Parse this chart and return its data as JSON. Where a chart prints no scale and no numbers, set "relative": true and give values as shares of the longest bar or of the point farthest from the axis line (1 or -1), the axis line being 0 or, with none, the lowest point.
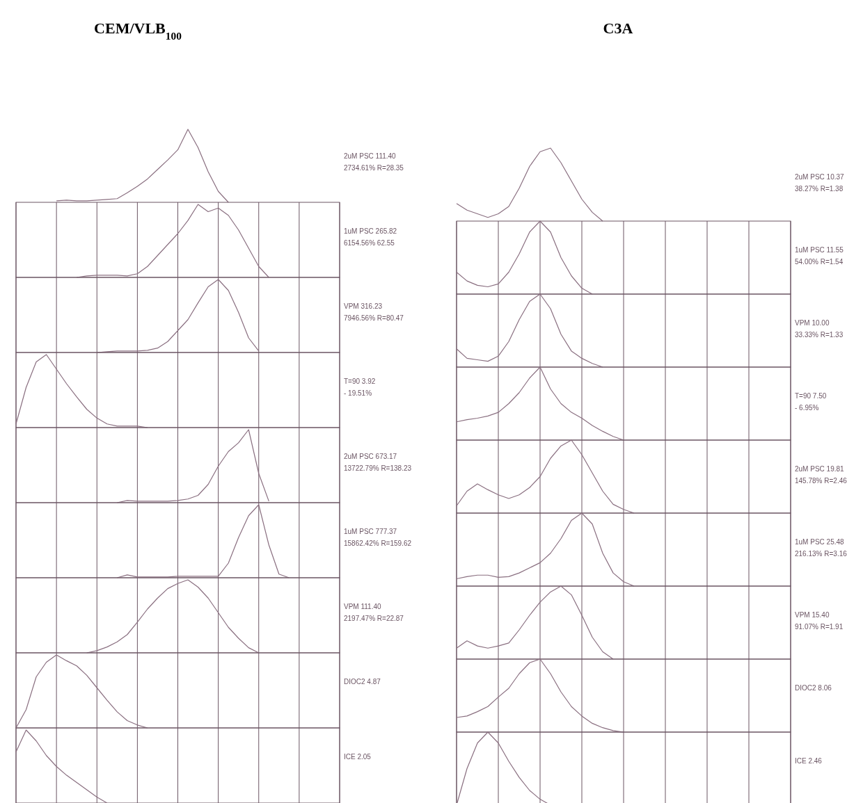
{
  "chart_data": [
    {
      "type": "line",
      "title": "CEM/VLB$_{100}$",
      "relative": true,
      "color": "#8a6f80",
      "annotations": [
        "2uM PSC 111.40",
        "2734.61% R=28.35"
      ],
      "categories": [
        null,
        null,
        null,
        null,
        null,
        null,
        null,
        null,
        null,
        null,
        null,
        null,
        null,
        null,
        null,
        null,
        null,
        null,
        null,
        null,
        null,
        null,
        null,
        null,
        null,
        null,
        null,
        null,
        null,
        null,
        null,
        null,
        null
      ],
      "values": [
        null,
        null,
        null,
        null,
        0.02,
        0.03,
        0.02,
        0.02,
        0.03,
        0.04,
        0.05,
        0.13,
        0.22,
        0.32,
        0.45,
        0.58,
        0.72,
        1.0,
        0.75,
        0.42,
        0.15,
        0,
        null,
        null,
        null,
        null,
        null,
        null,
        null,
        null,
        null,
        null,
        null
      ]
    },
    {
      "type": "line",
      "relative": true,
      "color": "#8a6f80",
      "grid": "x",
      "annotations": [
        "1uM PSC 265.82",
        "6154.56% 62.55"
      ],
      "categories": [
        null,
        null,
        null,
        null,
        null,
        null,
        null,
        null,
        null,
        null,
        null,
        null,
        null,
        null,
        null,
        null,
        null,
        null,
        null,
        null,
        null,
        null,
        null,
        null,
        null,
        null,
        null,
        null,
        null,
        null,
        null,
        null,
        null
      ],
      "values": [
        null,
        null,
        null,
        null,
        null,
        null,
        0,
        0.02,
        0.03,
        0.03,
        0.03,
        0.02,
        0.05,
        0.15,
        0.3,
        0.45,
        0.6,
        0.78,
        1.0,
        0.9,
        0.95,
        0.85,
        0.65,
        0.4,
        0.15,
        0,
        null,
        null,
        null,
        null,
        null,
        null,
        null
      ]
    },
    {
      "type": "line",
      "relative": true,
      "color": "#8a6f80",
      "grid": "x",
      "annotations": [
        "VPM 316.23",
        "7946.56% R=80.47"
      ],
      "categories": [
        null,
        null,
        null,
        null,
        null,
        null,
        null,
        null,
        null,
        null,
        null,
        null,
        null,
        null,
        null,
        null,
        null,
        null,
        null,
        null,
        null,
        null,
        null,
        null,
        null,
        null,
        null,
        null,
        null,
        null,
        null,
        null,
        null
      ],
      "values": [
        null,
        null,
        null,
        null,
        null,
        null,
        null,
        null,
        0,
        0.01,
        0.02,
        0.02,
        0.02,
        0.03,
        0.06,
        0.15,
        0.3,
        0.45,
        0.68,
        0.9,
        1.0,
        0.85,
        0.55,
        0.2,
        0.02,
        null,
        null,
        null,
        null,
        null,
        null,
        null,
        null
      ]
    },
    {
      "type": "line",
      "relative": true,
      "color": "#8a6f80",
      "grid": "x",
      "annotations": [
        "T=90 3.92",
        "- 19.51%"
      ],
      "categories": [
        null,
        null,
        null,
        null,
        null,
        null,
        null,
        null,
        null,
        null,
        null,
        null,
        null,
        null,
        null,
        null,
        null,
        null,
        null,
        null,
        null,
        null,
        null,
        null,
        null,
        null,
        null,
        null,
        null,
        null,
        null,
        null,
        null
      ],
      "values": [
        0.05,
        0.55,
        0.9,
        1.0,
        0.8,
        0.6,
        0.42,
        0.25,
        0.13,
        0.05,
        0.02,
        0.02,
        0.02,
        0,
        null,
        null,
        null,
        null,
        null,
        null,
        null,
        null,
        null,
        null,
        null,
        null,
        null,
        null,
        null,
        null,
        null,
        null,
        null
      ]
    },
    {
      "type": "line",
      "relative": true,
      "color": "#8a6f80",
      "grid": "x",
      "annotations": [
        "2uM PSC 673.17",
        "13722.79% R=138.23"
      ],
      "categories": [
        null,
        null,
        null,
        null,
        null,
        null,
        null,
        null,
        null,
        null,
        null,
        null,
        null,
        null,
        null,
        null,
        null,
        null,
        null,
        null,
        null,
        null,
        null,
        null,
        null,
        null,
        null,
        null,
        null,
        null,
        null,
        null,
        null
      ],
      "values": [
        null,
        null,
        null,
        null,
        null,
        null,
        null,
        null,
        null,
        null,
        0,
        0.03,
        0.02,
        0.02,
        0.02,
        0.02,
        0.03,
        0.05,
        0.1,
        0.25,
        0.5,
        0.7,
        0.82,
        1.0,
        0.4,
        0.02,
        null,
        null,
        null,
        null,
        null,
        null,
        null
      ]
    },
    {
      "type": "line",
      "relative": true,
      "color": "#8a6f80",
      "grid": "x",
      "annotations": [
        "1uM PSC 777.37",
        "15862.42% R=159.62"
      ],
      "categories": [
        null,
        null,
        null,
        null,
        null,
        null,
        null,
        null,
        null,
        null,
        null,
        null,
        null,
        null,
        null,
        null,
        null,
        null,
        null,
        null,
        null,
        null,
        null,
        null,
        null,
        null,
        null,
        null,
        null,
        null,
        null,
        null,
        null
      ],
      "values": [
        null,
        null,
        null,
        null,
        null,
        null,
        null,
        null,
        null,
        null,
        0,
        0.04,
        0.01,
        0.01,
        0.01,
        0.01,
        0.02,
        0.02,
        0.02,
        0.02,
        0.02,
        0.2,
        0.55,
        0.85,
        1.0,
        0.45,
        0.05,
        0,
        null,
        null,
        null,
        null,
        null
      ]
    },
    {
      "type": "line",
      "relative": true,
      "color": "#8a6f80",
      "grid": "x",
      "annotations": [
        "VPM 111.40",
        "2197.47% R=22.87"
      ],
      "categories": [
        null,
        null,
        null,
        null,
        null,
        null,
        null,
        null,
        null,
        null,
        null,
        null,
        null,
        null,
        null,
        null,
        null,
        null,
        null,
        null,
        null,
        null,
        null,
        null,
        null,
        null,
        null,
        null,
        null,
        null,
        null,
        null,
        null
      ],
      "values": [
        null,
        null,
        null,
        null,
        null,
        null,
        null,
        0,
        0.03,
        0.08,
        0.15,
        0.25,
        0.42,
        0.6,
        0.75,
        0.88,
        0.95,
        1.0,
        0.9,
        0.75,
        0.55,
        0.35,
        0.2,
        0.07,
        0,
        null,
        null,
        null,
        null,
        null,
        null,
        null,
        null
      ]
    },
    {
      "type": "line",
      "relative": true,
      "color": "#8a6f80",
      "grid": "x",
      "annotations": [
        "DIOC2 4.87"
      ],
      "categories": [
        null,
        null,
        null,
        null,
        null,
        null,
        null,
        null,
        null,
        null,
        null,
        null,
        null,
        null,
        null,
        null,
        null,
        null,
        null,
        null,
        null,
        null,
        null,
        null,
        null,
        null,
        null,
        null,
        null,
        null,
        null,
        null,
        null
      ],
      "values": [
        0,
        0.25,
        0.7,
        0.9,
        1.0,
        0.92,
        0.85,
        0.72,
        0.55,
        0.38,
        0.22,
        0.1,
        0.04,
        0,
        null,
        null,
        null,
        null,
        null,
        null,
        null,
        null,
        null,
        null,
        null,
        null,
        null,
        null,
        null,
        null,
        null,
        null,
        null
      ]
    },
    {
      "type": "line",
      "relative": true,
      "color": "#8a6f80",
      "grid": "x",
      "annotations": [
        "ICE 2.05"
      ],
      "categories": [
        null,
        null,
        null,
        null,
        null,
        null,
        null,
        null,
        null,
        null,
        null,
        null,
        null,
        null,
        null,
        null,
        null,
        null,
        null,
        null,
        null,
        null,
        null,
        null,
        null,
        null,
        null,
        null,
        null,
        null,
        null,
        null,
        null
      ],
      "values": [
        0.7,
        1.0,
        0.85,
        0.65,
        0.5,
        0.38,
        0.28,
        0.18,
        0.08,
        0,
        null,
        null,
        null,
        null,
        null,
        null,
        null,
        null,
        null,
        null,
        null,
        null,
        null,
        null,
        null,
        null,
        null,
        null,
        null,
        null,
        null,
        null,
        null
      ]
    },
    {
      "type": "line",
      "title": "C3A",
      "relative": true,
      "color": "#8a6f80",
      "annotations": [
        "2uM PSC 10.37",
        "38.27% R=1.38"
      ],
      "categories": [
        null,
        null,
        null,
        null,
        null,
        null,
        null,
        null,
        null,
        null,
        null,
        null,
        null,
        null,
        null,
        null,
        null,
        null,
        null,
        null,
        null,
        null,
        null,
        null,
        null,
        null,
        null,
        null,
        null,
        null,
        null,
        null,
        null
      ],
      "values": [
        0.24,
        0.15,
        0.1,
        0.05,
        0.1,
        0.2,
        0.45,
        0.75,
        0.95,
        1.0,
        0.8,
        0.55,
        0.3,
        0.12,
        0,
        null,
        null,
        null,
        null,
        null,
        null,
        null,
        null,
        null,
        null,
        null,
        null,
        null,
        null,
        null,
        null,
        null,
        null
      ]
    },
    {
      "type": "line",
      "relative": true,
      "color": "#8a6f80",
      "grid": "x",
      "annotations": [
        "1uM PSC 11.55",
        "54.00% R=1.54"
      ],
      "categories": [
        null,
        null,
        null,
        null,
        null,
        null,
        null,
        null,
        null,
        null,
        null,
        null,
        null,
        null,
        null,
        null,
        null,
        null,
        null,
        null,
        null,
        null,
        null,
        null,
        null,
        null,
        null,
        null,
        null,
        null,
        null,
        null,
        null
      ],
      "values": [
        0.3,
        0.18,
        0.12,
        0.1,
        0.14,
        0.3,
        0.55,
        0.85,
        1.0,
        0.85,
        0.5,
        0.25,
        0.08,
        0,
        null,
        null,
        null,
        null,
        null,
        null,
        null,
        null,
        null,
        null,
        null,
        null,
        null,
        null,
        null,
        null,
        null,
        null,
        null
      ]
    },
    {
      "type": "line",
      "relative": true,
      "color": "#8a6f80",
      "grid": "x",
      "annotations": [
        "VPM 10.00",
        "33.33% R=1.33"
      ],
      "categories": [
        null,
        null,
        null,
        null,
        null,
        null,
        null,
        null,
        null,
        null,
        null,
        null,
        null,
        null,
        null,
        null,
        null,
        null,
        null,
        null,
        null,
        null,
        null,
        null,
        null,
        null,
        null,
        null,
        null,
        null,
        null,
        null,
        null
      ],
      "values": [
        0.25,
        0.12,
        0.1,
        0.08,
        0.15,
        0.35,
        0.65,
        0.9,
        1.0,
        0.8,
        0.45,
        0.22,
        0.12,
        0.05,
        0,
        null,
        null,
        null,
        null,
        null,
        null,
        null,
        null,
        null,
        null,
        null,
        null,
        null,
        null,
        null,
        null,
        null,
        null
      ]
    },
    {
      "type": "line",
      "relative": true,
      "color": "#8a6f80",
      "grid": "x",
      "annotations": [
        "T=90 7.50",
        "- 6.95%"
      ],
      "categories": [
        null,
        null,
        null,
        null,
        null,
        null,
        null,
        null,
        null,
        null,
        null,
        null,
        null,
        null,
        null,
        null,
        null,
        null,
        null,
        null,
        null,
        null,
        null,
        null,
        null,
        null,
        null,
        null,
        null,
        null,
        null,
        null,
        null
      ],
      "values": [
        0.25,
        0.28,
        0.3,
        0.33,
        0.38,
        0.5,
        0.65,
        0.85,
        1.0,
        0.7,
        0.5,
        0.38,
        0.3,
        0.2,
        0.12,
        0.05,
        0,
        null,
        null,
        null,
        null,
        null,
        null,
        null,
        null,
        null,
        null,
        null,
        null,
        null,
        null,
        null,
        null
      ]
    },
    {
      "type": "line",
      "relative": true,
      "color": "#8a6f80",
      "grid": "x",
      "annotations": [
        "2uM PSC 19.81",
        "145.78% R=2.46"
      ],
      "categories": [
        null,
        null,
        null,
        null,
        null,
        null,
        null,
        null,
        null,
        null,
        null,
        null,
        null,
        null,
        null,
        null,
        null,
        null,
        null,
        null,
        null,
        null,
        null,
        null,
        null,
        null,
        null,
        null,
        null,
        null,
        null,
        null,
        null
      ],
      "values": [
        0.1,
        0.3,
        0.4,
        0.32,
        0.25,
        0.2,
        0.25,
        0.35,
        0.5,
        0.75,
        0.92,
        1.0,
        0.8,
        0.55,
        0.3,
        0.12,
        0.05,
        0,
        null,
        null,
        null,
        null,
        null,
        null,
        null,
        null,
        null,
        null,
        null,
        null,
        null,
        null,
        null
      ]
    },
    {
      "type": "line",
      "relative": true,
      "color": "#8a6f80",
      "grid": "x",
      "annotations": [
        "1uM PSC 25.48",
        "216.13% R=3.16"
      ],
      "categories": [
        null,
        null,
        null,
        null,
        null,
        null,
        null,
        null,
        null,
        null,
        null,
        null,
        null,
        null,
        null,
        null,
        null,
        null,
        null,
        null,
        null,
        null,
        null,
        null,
        null,
        null,
        null,
        null,
        null,
        null,
        null,
        null,
        null
      ],
      "values": [
        0.1,
        0.13,
        0.15,
        0.15,
        0.12,
        0.13,
        0.18,
        0.25,
        0.32,
        0.45,
        0.65,
        0.9,
        1.0,
        0.85,
        0.45,
        0.18,
        0.06,
        0,
        null,
        null,
        null,
        null,
        null,
        null,
        null,
        null,
        null,
        null,
        null,
        null,
        null,
        null,
        null
      ]
    },
    {
      "type": "line",
      "relative": true,
      "color": "#8a6f80",
      "grid": "x",
      "annotations": [
        "VPM 15.40",
        "91.07% R=1.91"
      ],
      "categories": [
        null,
        null,
        null,
        null,
        null,
        null,
        null,
        null,
        null,
        null,
        null,
        null,
        null,
        null,
        null,
        null,
        null,
        null,
        null,
        null,
        null,
        null,
        null,
        null,
        null,
        null,
        null,
        null,
        null,
        null,
        null,
        null,
        null
      ],
      "values": [
        0.15,
        0.25,
        0.18,
        0.15,
        0.18,
        0.22,
        0.4,
        0.6,
        0.78,
        0.92,
        1.0,
        0.88,
        0.6,
        0.3,
        0.1,
        0,
        null,
        null,
        null,
        null,
        null,
        null,
        null,
        null,
        null,
        null,
        null,
        null,
        null,
        null,
        null,
        null,
        null
      ]
    },
    {
      "type": "line",
      "relative": true,
      "color": "#8a6f80",
      "grid": "x",
      "annotations": [
        "DIOC2 8.06"
      ],
      "categories": [
        null,
        null,
        null,
        null,
        null,
        null,
        null,
        null,
        null,
        null,
        null,
        null,
        null,
        null,
        null,
        null,
        null,
        null,
        null,
        null,
        null,
        null,
        null,
        null,
        null,
        null,
        null,
        null,
        null,
        null,
        null,
        null,
        null
      ],
      "values": [
        0.2,
        0.22,
        0.28,
        0.35,
        0.48,
        0.6,
        0.8,
        0.95,
        1.0,
        0.8,
        0.55,
        0.35,
        0.22,
        0.12,
        0.06,
        0.02,
        0,
        null,
        null,
        null,
        null,
        null,
        null,
        null,
        null,
        null,
        null,
        null,
        null,
        null,
        null,
        null,
        null
      ]
    },
    {
      "type": "line",
      "relative": true,
      "color": "#8a6f80",
      "grid": "x",
      "annotations": [
        "ICE 2.46"
      ],
      "categories": [
        null,
        null,
        null,
        null,
        null,
        null,
        null,
        null,
        null,
        null,
        null,
        null,
        null,
        null,
        null,
        null,
        null,
        null,
        null,
        null,
        null,
        null,
        null,
        null,
        null,
        null,
        null,
        null,
        null,
        null,
        null,
        null,
        null
      ],
      "values": [
        0,
        0.5,
        0.85,
        1.0,
        0.85,
        0.6,
        0.38,
        0.2,
        0.08,
        0,
        null,
        null,
        null,
        null,
        null,
        null,
        null,
        null,
        null,
        null,
        null,
        null,
        null,
        null,
        null,
        null,
        null,
        null,
        null,
        null,
        null,
        null,
        null
      ]
    }
  ]
}
